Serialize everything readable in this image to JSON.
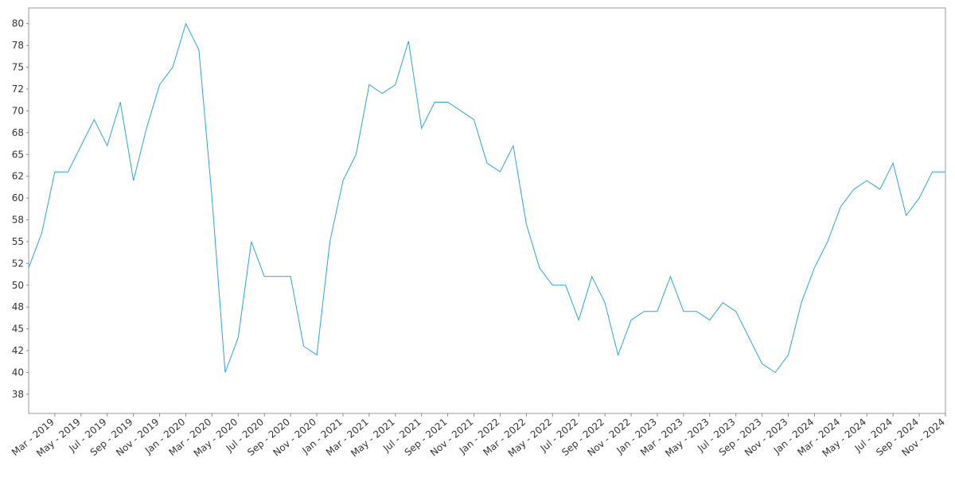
{
  "chart_data": {
    "type": "line",
    "x": [
      "2019-01",
      "2019-02",
      "2019-03",
      "2019-04",
      "2019-05",
      "2019-06",
      "2019-07",
      "2019-08",
      "2019-09",
      "2019-10",
      "2019-11",
      "2019-12",
      "2020-01",
      "2020-02",
      "2020-03",
      "2020-04",
      "2020-05",
      "2020-06",
      "2020-07",
      "2020-08",
      "2020-09",
      "2020-10",
      "2020-11",
      "2020-12",
      "2021-01",
      "2021-02",
      "2021-03",
      "2021-04",
      "2021-05",
      "2021-06",
      "2021-07",
      "2021-08",
      "2021-09",
      "2021-10",
      "2021-11",
      "2021-12",
      "2022-01",
      "2022-02",
      "2022-03",
      "2022-04",
      "2022-05",
      "2022-06",
      "2022-07",
      "2022-08",
      "2022-09",
      "2022-10",
      "2022-11",
      "2022-12",
      "2023-01",
      "2023-02",
      "2023-03",
      "2023-04",
      "2023-05",
      "2023-06",
      "2023-07",
      "2023-08",
      "2023-09",
      "2023-10",
      "2023-11",
      "2023-12",
      "2024-01",
      "2024-02",
      "2024-03",
      "2024-04",
      "2024-05",
      "2024-06",
      "2024-07",
      "2024-08",
      "2024-09",
      "2024-10",
      "2024-11"
    ],
    "series": [
      {
        "color": "#2aa5d8",
        "values": [
          52,
          56,
          63,
          63,
          66,
          69,
          66,
          71,
          62,
          68,
          73,
          75,
          80,
          77,
          60,
          40,
          44,
          55,
          51,
          51,
          51,
          43,
          42,
          55,
          62,
          65,
          73,
          72,
          73,
          78,
          68,
          71,
          71,
          70,
          69,
          64,
          63,
          66,
          57,
          52,
          50,
          50,
          46,
          51,
          48,
          42,
          46,
          47,
          47,
          51,
          47,
          47,
          46,
          48,
          47,
          44,
          41,
          40,
          42,
          48,
          52,
          55,
          59,
          61,
          62,
          61,
          64,
          58,
          60,
          63,
          63
        ]
      }
    ],
    "xlim": [
      "2019-01",
      "2024-11"
    ],
    "xticks": [
      {
        "value": "2019-03",
        "label": "Mar - 2019"
      },
      {
        "value": "2019-05",
        "label": "May - 2019"
      },
      {
        "value": "2019-07",
        "label": "Jul - 2019"
      },
      {
        "value": "2019-09",
        "label": "Sep - 2019"
      },
      {
        "value": "2019-11",
        "label": "Nov - 2019"
      },
      {
        "value": "2020-01",
        "label": "Jan - 2020"
      },
      {
        "value": "2020-03",
        "label": "Mar - 2020"
      },
      {
        "value": "2020-05",
        "label": "May - 2020"
      },
      {
        "value": "2020-07",
        "label": "Jul - 2020"
      },
      {
        "value": "2020-09",
        "label": "Sep - 2020"
      },
      {
        "value": "2020-11",
        "label": "Nov - 2020"
      },
      {
        "value": "2021-01",
        "label": "Jan - 2021"
      },
      {
        "value": "2021-03",
        "label": "Mar - 2021"
      },
      {
        "value": "2021-05",
        "label": "May - 2021"
      },
      {
        "value": "2021-07",
        "label": "Jul - 2021"
      },
      {
        "value": "2021-09",
        "label": "Sep - 2021"
      },
      {
        "value": "2021-11",
        "label": "Nov - 2021"
      },
      {
        "value": "2022-01",
        "label": "Jan - 2022"
      },
      {
        "value": "2022-03",
        "label": "Mar - 2022"
      },
      {
        "value": "2022-05",
        "label": "May - 2022"
      },
      {
        "value": "2022-07",
        "label": "Jul - 2022"
      },
      {
        "value": "2022-09",
        "label": "Sep - 2022"
      },
      {
        "value": "2022-11",
        "label": "Nov - 2022"
      },
      {
        "value": "2023-01",
        "label": "Jan - 2023"
      },
      {
        "value": "2023-03",
        "label": "Mar - 2023"
      },
      {
        "value": "2023-05",
        "label": "May - 2023"
      },
      {
        "value": "2023-07",
        "label": "Jul - 2023"
      },
      {
        "value": "2023-09",
        "label": "Sep - 2023"
      },
      {
        "value": "2023-11",
        "label": "Nov - 2023"
      },
      {
        "value": "2024-01",
        "label": "Jan - 2024"
      },
      {
        "value": "2024-03",
        "label": "Mar - 2024"
      },
      {
        "value": "2024-05",
        "label": "May - 2024"
      },
      {
        "value": "2024-07",
        "label": "Jul - 2024"
      },
      {
        "value": "2024-09",
        "label": "Sep - 2024"
      },
      {
        "value": "2024-11",
        "label": "Nov - 2024"
      }
    ],
    "ylim": [
      35.3,
      81.8
    ],
    "yticks": [
      {
        "value": 37.5,
        "label": "38"
      },
      40,
      {
        "value": 42.5,
        "label": "42"
      },
      45,
      {
        "value": 47.5,
        "label": "48"
      },
      50,
      {
        "value": 52.5,
        "label": "52"
      },
      55,
      {
        "value": 57.5,
        "label": "58"
      },
      60,
      {
        "value": 62.5,
        "label": "62"
      },
      65,
      {
        "value": 67.5,
        "label": "68"
      },
      70,
      {
        "value": 72.5,
        "label": "72"
      },
      75,
      {
        "value": 77.5,
        "label": "78"
      },
      80
    ],
    "grid": false
  }
}
